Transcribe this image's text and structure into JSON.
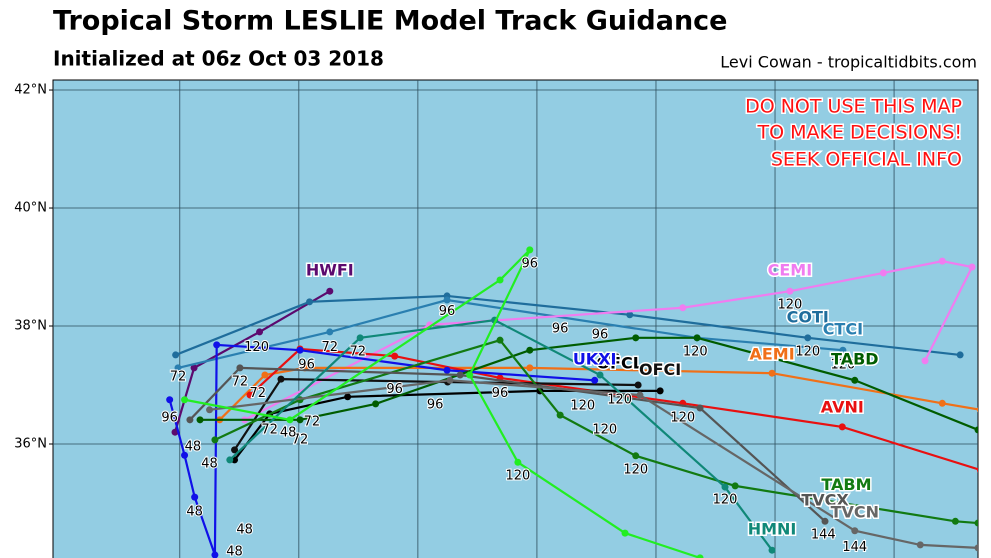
{
  "chart_data": {
    "type": "map",
    "title": "Tropical Storm LESLIE Model Track Guidance",
    "subtitle": "Initialized at 06z Oct 03 2018",
    "credit": "Levi Cowan - tropicaltidbits.com",
    "warning": [
      "DO NOT USE THIS MAP",
      "TO MAKE DECISIONS!",
      "SEEK OFFICIAL INFO"
    ],
    "xlim": [
      -52.13,
      -36.59
    ],
    "ylim": [
      34,
      42.17
    ],
    "xticks": [
      -50,
      -48,
      -46,
      -44,
      -42,
      -40,
      -38
    ],
    "yticks": [
      {
        "value": 36,
        "label": "36°N"
      },
      {
        "value": 38,
        "label": "38°N"
      },
      {
        "value": 40,
        "label": "40°N"
      },
      {
        "value": 42,
        "label": "42°N"
      }
    ],
    "grid": true,
    "series": [
      {
        "name": "HWFI",
        "color": "#5c0a6e",
        "lon": [
          -50.08,
          -49.76,
          -48.66,
          -47.48
        ],
        "lat": [
          36.2,
          37.29,
          37.9,
          38.59
        ],
        "label_lon": -47.48,
        "label_lat": 38.93
      },
      {
        "name": "COTI",
        "color": "#1f6d9c",
        "lon": [
          -50.07,
          -47.82,
          -45.51,
          -42.44,
          -39.45,
          -36.89
        ],
        "lat": [
          37.51,
          38.41,
          38.51,
          38.19,
          37.8,
          37.51
        ],
        "label_lon": -39.45,
        "label_lat": 38.14
      },
      {
        "name": "CTCI",
        "color": "#2a7fb0",
        "lon": [
          -50.03,
          -47.48,
          -45.51,
          -41.31,
          -38.86
        ],
        "lat": [
          37.29,
          37.9,
          38.44,
          37.8,
          37.59
        ],
        "label_lon": -38.86,
        "label_lat": 37.93
      },
      {
        "name": "CEMI",
        "color": "#f07cf0",
        "lon": [
          -48.91,
          -45.8,
          -41.55,
          -39.75,
          -38.18,
          -37.19,
          -36.69,
          -37.48
        ],
        "lat": [
          36.41,
          38.02,
          38.31,
          38.59,
          38.9,
          39.1,
          39,
          37.41
        ],
        "label_lon": -39.75,
        "label_lat": 38.93
      },
      {
        "name": "AEMI",
        "color": "#f07018",
        "lon": [
          -49.33,
          -48.57,
          -47.9,
          -44.12,
          -40.05,
          -37.19,
          -36.55
        ],
        "lat": [
          36.41,
          37.17,
          37.29,
          37.29,
          37.2,
          36.69,
          36.58
        ],
        "label_lon": -40.05,
        "label_lat": 37.51
      },
      {
        "name": "AVNI",
        "color": "#e81010",
        "lon": [
          -48.82,
          -47.98,
          -46.39,
          -44.62,
          -41.55,
          -38.87,
          -36.55
        ],
        "lat": [
          36.83,
          37.61,
          37.49,
          37.12,
          36.69,
          36.29,
          35.56
        ],
        "label_lon": -38.87,
        "label_lat": 36.61
      },
      {
        "name": "OFCL",
        "color": "#000000",
        "lon": [
          -49.08,
          -48.49,
          -47.18,
          -43.95,
          -41.93
        ],
        "lat": [
          35.73,
          36.51,
          36.8,
          36.9,
          36.9
        ],
        "label_lon": -42.61,
        "label_lat": 37.36
      },
      {
        "name": "OFCI",
        "color": "#111111",
        "lon": [
          -49.08,
          -48.3,
          -45.5,
          -42.3
        ],
        "lat": [
          35.9,
          37.1,
          37.05,
          37.0
        ],
        "label_lon": -41.93,
        "label_lat": 37.25
      },
      {
        "name": "UKXI",
        "color": "#1010e8",
        "lon": [
          -50.17,
          -49.92,
          -49.75,
          -49.41,
          -49.38,
          -47.98,
          -45.51,
          -43.03
        ],
        "lat": [
          36.75,
          35.81,
          35.1,
          34.12,
          37.68,
          37.59,
          37.25,
          37.08
        ],
        "label_lon": -43.03,
        "label_lat": 37.42
      },
      {
        "name": "TABD",
        "color": "#005c00",
        "lon": [
          -49.66,
          -47.98,
          -46.71,
          -44.12,
          -42.34,
          -41.31,
          -38.66,
          -36.59
        ],
        "lat": [
          36.41,
          36.41,
          36.68,
          37.59,
          37.8,
          37.8,
          37.08,
          36.24
        ],
        "label_lon": -38.66,
        "label_lat": 37.42
      },
      {
        "name": "TABM",
        "color": "#127a12",
        "lon": [
          -49.41,
          -47.98,
          -44.62,
          -43.61,
          -42.34,
          -40.67,
          -36.97,
          -36.59
        ],
        "lat": [
          36.07,
          36.75,
          37.76,
          36.49,
          35.8,
          35.29,
          34.69,
          34.66
        ],
        "label_lon": -38.8,
        "label_lat": 35.3
      },
      {
        "name": "TVCX",
        "color": "#555555",
        "lon": [
          -49.83,
          -48.99,
          -45.29,
          -41.26,
          -39.16
        ],
        "lat": [
          36.41,
          37.29,
          37.17,
          36.61,
          34.69
        ],
        "label_lon": -39.16,
        "label_lat": 35.03
      },
      {
        "name": "TVCN",
        "color": "#666666",
        "lon": [
          -49.5,
          -45.46,
          -42.27,
          -38.66,
          -37.56,
          -36.59
        ],
        "lat": [
          36.58,
          37.08,
          36.83,
          34.53,
          34.29,
          34.24
        ],
        "label_lon": -38.66,
        "label_lat": 34.83
      },
      {
        "name": "HMNI",
        "color": "#108878",
        "lon": [
          -49.16,
          -46.97,
          -44.71,
          -42.94,
          -40.84,
          -40.05
        ],
        "lat": [
          35.73,
          37.8,
          38.1,
          37.17,
          35.27,
          34.2
        ],
        "label_lon": -40.05,
        "label_lat": 34.54
      },
      {
        "color": "#22ee22",
        "lon": [
          -49.92,
          -48.15,
          -44.62,
          -44.12,
          -45.13,
          -44.32,
          -42.52,
          -41.26
        ],
        "lat": [
          36.75,
          36.41,
          38.78,
          39.29,
          37.17,
          35.69,
          34.49,
          34.07
        ]
      }
    ],
    "hour_labels": [
      {
        "text": "96",
        "lon": -44.12,
        "lat": 39.05
      },
      {
        "text": "96",
        "lon": -45.51,
        "lat": 38.25
      },
      {
        "text": "96",
        "lon": -43.61,
        "lat": 37.95
      },
      {
        "text": "96",
        "lon": -42.94,
        "lat": 37.85
      },
      {
        "text": "120",
        "lon": -41.34,
        "lat": 37.56
      },
      {
        "text": "120",
        "lon": -39.45,
        "lat": 37.56
      },
      {
        "text": "120",
        "lon": -38.86,
        "lat": 37.34
      },
      {
        "text": "120",
        "lon": -39.75,
        "lat": 38.36
      },
      {
        "text": "120",
        "lon": -42.86,
        "lat": 36.24
      },
      {
        "text": "120",
        "lon": -42.34,
        "lat": 35.56
      },
      {
        "text": "120",
        "lon": -40.84,
        "lat": 35.05
      },
      {
        "text": "120",
        "lon": -44.32,
        "lat": 35.46
      },
      {
        "text": "120",
        "lon": -41.55,
        "lat": 36.44
      },
      {
        "text": "120",
        "lon": -43.23,
        "lat": 36.64
      },
      {
        "text": "120",
        "lon": -42.61,
        "lat": 36.75
      },
      {
        "text": "144",
        "lon": -39.19,
        "lat": 34.46
      },
      {
        "text": "144",
        "lon": -38.66,
        "lat": 34.25
      },
      {
        "text": "72",
        "lon": -47.48,
        "lat": 37.64
      },
      {
        "text": "72",
        "lon": -47.01,
        "lat": 37.56
      },
      {
        "text": "72",
        "lon": -48.99,
        "lat": 37.05
      },
      {
        "text": "72",
        "lon": -50.03,
        "lat": 37.14
      },
      {
        "text": "72",
        "lon": -47.78,
        "lat": 36.37
      },
      {
        "text": "72",
        "lon": -48.49,
        "lat": 36.24
      },
      {
        "text": "72",
        "lon": -47.98,
        "lat": 36.07
      },
      {
        "text": "72",
        "lon": -48.69,
        "lat": 36.86
      },
      {
        "text": "48",
        "lon": -49.78,
        "lat": 35.95
      },
      {
        "text": "48",
        "lon": -49.5,
        "lat": 35.66
      },
      {
        "text": "48",
        "lon": -49.75,
        "lat": 34.85
      },
      {
        "text": "48",
        "lon": -48.91,
        "lat": 34.54
      },
      {
        "text": "48",
        "lon": -49.08,
        "lat": 34.17
      },
      {
        "text": "48",
        "lon": -48.18,
        "lat": 36.19
      },
      {
        "text": "96",
        "lon": -46.39,
        "lat": 36.92
      },
      {
        "text": "96",
        "lon": -45.71,
        "lat": 36.66
      },
      {
        "text": "96",
        "lon": -44.62,
        "lat": 36.86
      },
      {
        "text": "96",
        "lon": -50.17,
        "lat": 36.44
      },
      {
        "text": "96",
        "lon": -47.87,
        "lat": 37.34
      },
      {
        "text": "120",
        "lon": -48.71,
        "lat": 37.64
      },
      {
        "text": "96",
        "lon": -42.74,
        "lat": 37.42
      }
    ]
  }
}
